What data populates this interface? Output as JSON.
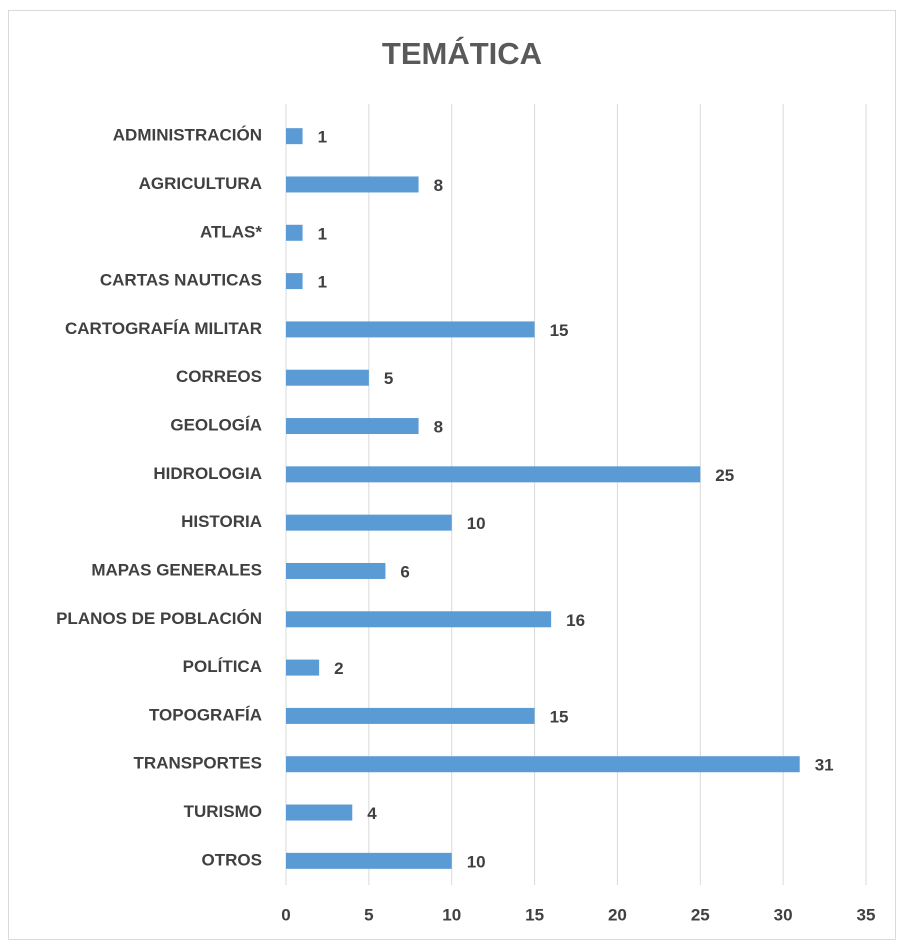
{
  "chart_data": {
    "type": "barh",
    "title": "TEMÁTICA",
    "categories": [
      "ADMINISTRACIÓN",
      "AGRICULTURA",
      "ATLAS*",
      "CARTAS NAUTICAS",
      "CARTOGRAFÍA MILITAR",
      "CORREOS",
      "GEOLOGÍA",
      "HIDROLOGIA",
      "HISTORIA",
      "MAPAS GENERALES",
      "PLANOS DE POBLACIÓN",
      "POLÍTICA",
      "TOPOGRAFÍA",
      "TRANSPORTES",
      "TURISMO",
      "OTROS"
    ],
    "values": [
      1,
      8,
      1,
      1,
      15,
      5,
      8,
      25,
      10,
      6,
      16,
      2,
      15,
      31,
      4,
      10
    ],
    "color": "#5b9bd5",
    "xlim": [
      0,
      35
    ],
    "xticks": [
      0,
      5,
      10,
      15,
      20,
      25,
      30,
      35
    ],
    "grid": true
  }
}
